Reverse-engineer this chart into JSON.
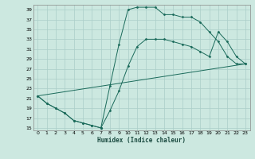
{
  "xlabel": "Humidex (Indice chaleur)",
  "bg_color": "#cce8e0",
  "grid_color": "#aacec8",
  "line_color": "#1a6a5a",
  "xlim": [
    -0.5,
    23.5
  ],
  "ylim": [
    14.5,
    40
  ],
  "yticks": [
    15,
    17,
    19,
    21,
    23,
    25,
    27,
    29,
    31,
    33,
    35,
    37,
    39
  ],
  "xticks": [
    0,
    1,
    2,
    3,
    4,
    5,
    6,
    7,
    8,
    9,
    10,
    11,
    12,
    13,
    14,
    15,
    16,
    17,
    18,
    19,
    20,
    21,
    22,
    23
  ],
  "line1_x": [
    0,
    1,
    2,
    3,
    4,
    5,
    6,
    7,
    7,
    8,
    9,
    10,
    11,
    12,
    13,
    14,
    15,
    16,
    17,
    18,
    19,
    20,
    21,
    22,
    23
  ],
  "line1_y": [
    21.5,
    20.0,
    19.0,
    18.0,
    16.5,
    16.0,
    15.5,
    15.0,
    15.0,
    23.5,
    32.0,
    39.0,
    39.5,
    39.5,
    39.5,
    38.0,
    38.0,
    37.5,
    37.5,
    36.5,
    34.5,
    32.5,
    29.5,
    28.0,
    28.0
  ],
  "line2_x": [
    0,
    1,
    2,
    3,
    4,
    5,
    6,
    7,
    8,
    9,
    10,
    11,
    12,
    13,
    14,
    15,
    16,
    17,
    18,
    19,
    20,
    21,
    22,
    23
  ],
  "line2_y": [
    21.5,
    20.0,
    19.0,
    18.0,
    16.5,
    16.0,
    15.5,
    15.0,
    18.5,
    22.5,
    27.5,
    31.5,
    33.0,
    33.0,
    33.0,
    32.5,
    32.0,
    31.5,
    30.5,
    29.5,
    34.5,
    32.5,
    29.5,
    28.0
  ],
  "line3_x": [
    0,
    23
  ],
  "line3_y": [
    21.5,
    28.0
  ]
}
